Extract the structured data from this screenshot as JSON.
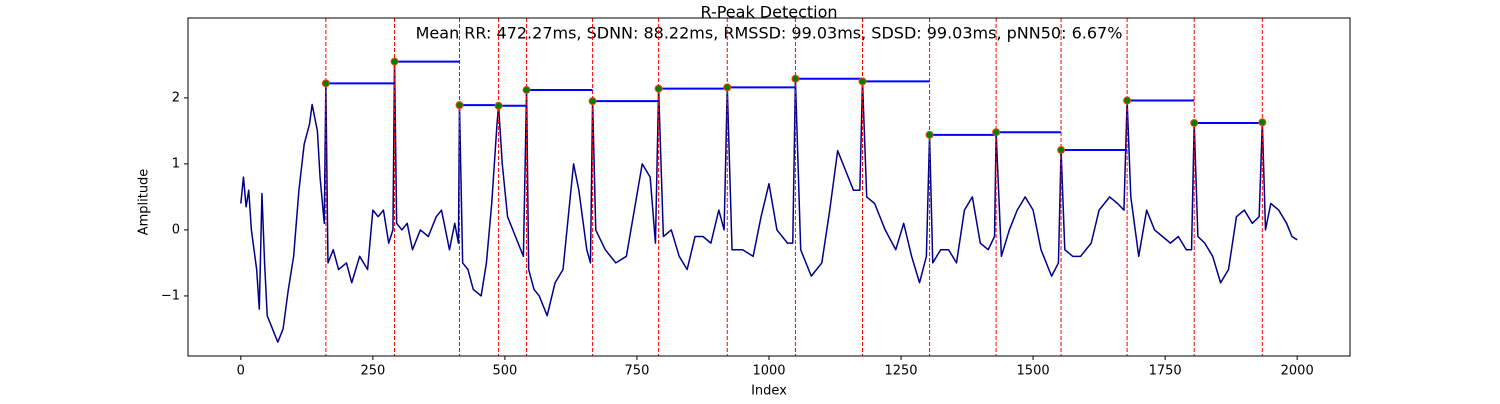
{
  "chart_data": {
    "type": "line",
    "title": "R-Peak Detection",
    "subtitle": "Mean RR: 472.27ms, SDNN: 88.22ms, RMSSD: 99.03ms, SDSD: 99.03ms, pNN50: 6.67%",
    "xlabel": "Index",
    "ylabel": "Amplitude",
    "xlim": [
      -100,
      2100
    ],
    "ylim": [
      -1.91,
      3.21
    ],
    "xticks": [
      0,
      250,
      500,
      750,
      1000,
      1250,
      1500,
      1750,
      2000
    ],
    "yticks": [
      {
        "value": -1,
        "label": "−1"
      },
      0,
      1,
      2
    ],
    "series": [
      {
        "color": "#00008b",
        "x": [
          0,
          5,
          10,
          15,
          20,
          30,
          35,
          40,
          45,
          50,
          60,
          70,
          80,
          90,
          100,
          110,
          120,
          130,
          135,
          145,
          150,
          158,
          161,
          165,
          175,
          185,
          200,
          210,
          225,
          240,
          250,
          260,
          270,
          280,
          288,
          291,
          295,
          305,
          315,
          325,
          340,
          355,
          370,
          380,
          395,
          405,
          412,
          414,
          420,
          430,
          440,
          455,
          465,
          475,
          485,
          488,
          495,
          505,
          520,
          535,
          541,
          545,
          555,
          565,
          580,
          595,
          610,
          620,
          630,
          640,
          655,
          662,
          666,
          672,
          690,
          710,
          730,
          745,
          760,
          775,
          785,
          791,
          800,
          815,
          830,
          845,
          860,
          875,
          890,
          905,
          915,
          921,
          930,
          950,
          970,
          985,
          1000,
          1015,
          1035,
          1045,
          1050,
          1060,
          1080,
          1100,
          1115,
          1130,
          1145,
          1160,
          1172,
          1177,
          1185,
          1200,
          1220,
          1240,
          1255,
          1270,
          1285,
          1298,
          1304,
          1310,
          1325,
          1340,
          1355,
          1370,
          1385,
          1400,
          1415,
          1427,
          1430,
          1440,
          1455,
          1470,
          1485,
          1500,
          1515,
          1535,
          1548,
          1553,
          1560,
          1575,
          1590,
          1610,
          1625,
          1645,
          1660,
          1672,
          1678,
          1685,
          1700,
          1715,
          1730,
          1745,
          1760,
          1775,
          1790,
          1800,
          1805,
          1812,
          1825,
          1840,
          1855,
          1870,
          1885,
          1900,
          1915,
          1928,
          1934,
          1940,
          1950,
          1965,
          1980,
          1990,
          2000
        ],
        "values": [
          0.4,
          0.8,
          0.35,
          0.6,
          0.0,
          -0.6,
          -1.2,
          0.55,
          -0.5,
          -1.3,
          -1.5,
          -1.7,
          -1.5,
          -0.9,
          -0.4,
          0.6,
          1.3,
          1.6,
          1.9,
          1.5,
          0.8,
          0.1,
          2.22,
          -0.5,
          -0.3,
          -0.6,
          -0.5,
          -0.8,
          -0.4,
          -0.6,
          0.3,
          0.2,
          0.3,
          -0.2,
          0.0,
          2.55,
          0.1,
          0.0,
          0.1,
          -0.3,
          0.0,
          -0.1,
          0.2,
          0.3,
          -0.3,
          0.1,
          -0.2,
          1.89,
          -0.5,
          -0.6,
          -0.9,
          -1.0,
          -0.5,
          0.4,
          1.6,
          1.88,
          1.0,
          0.2,
          -0.1,
          -0.4,
          2.12,
          -0.6,
          -0.9,
          -1.0,
          -1.3,
          -0.8,
          -0.6,
          0.2,
          1.0,
          0.6,
          -0.3,
          -0.5,
          1.95,
          0.0,
          -0.3,
          -0.5,
          -0.4,
          0.3,
          1.0,
          0.8,
          -0.2,
          2.14,
          -0.1,
          0.0,
          -0.4,
          -0.6,
          -0.1,
          -0.1,
          -0.2,
          0.3,
          0.0,
          2.16,
          -0.3,
          -0.3,
          -0.4,
          0.2,
          0.7,
          0.0,
          -0.2,
          -0.2,
          2.29,
          -0.3,
          -0.7,
          -0.5,
          0.3,
          1.2,
          0.9,
          0.6,
          0.6,
          2.25,
          0.5,
          0.4,
          0.0,
          -0.3,
          0.1,
          -0.4,
          -0.8,
          -0.4,
          1.44,
          -0.5,
          -0.3,
          -0.3,
          -0.5,
          0.3,
          0.5,
          -0.2,
          -0.3,
          -0.1,
          1.48,
          -0.4,
          0.0,
          0.3,
          0.5,
          0.3,
          -0.3,
          -0.7,
          -0.5,
          1.21,
          -0.3,
          -0.4,
          -0.4,
          -0.2,
          0.3,
          0.5,
          0.4,
          0.3,
          1.96,
          0.5,
          -0.4,
          0.3,
          0.0,
          -0.1,
          -0.2,
          -0.1,
          -0.3,
          -0.3,
          1.62,
          -0.1,
          -0.2,
          -0.4,
          -0.8,
          -0.6,
          0.2,
          0.3,
          0.1,
          0.2,
          1.63,
          0.0,
          0.4,
          0.3,
          0.1,
          -0.1,
          -0.15
        ]
      }
    ],
    "peaks": {
      "color": "#008000",
      "edge_color": "#ff4500",
      "line_color": "red",
      "rr_color": "blue",
      "x": [
        161,
        291,
        414,
        488,
        541,
        666,
        791,
        921,
        1050,
        1177,
        1304,
        1430,
        1553,
        1678,
        1805,
        1934
      ],
      "values": [
        2.22,
        2.55,
        1.89,
        1.88,
        2.12,
        1.95,
        2.14,
        2.16,
        2.29,
        2.25,
        1.44,
        1.48,
        1.21,
        1.96,
        1.62,
        1.63
      ]
    }
  }
}
